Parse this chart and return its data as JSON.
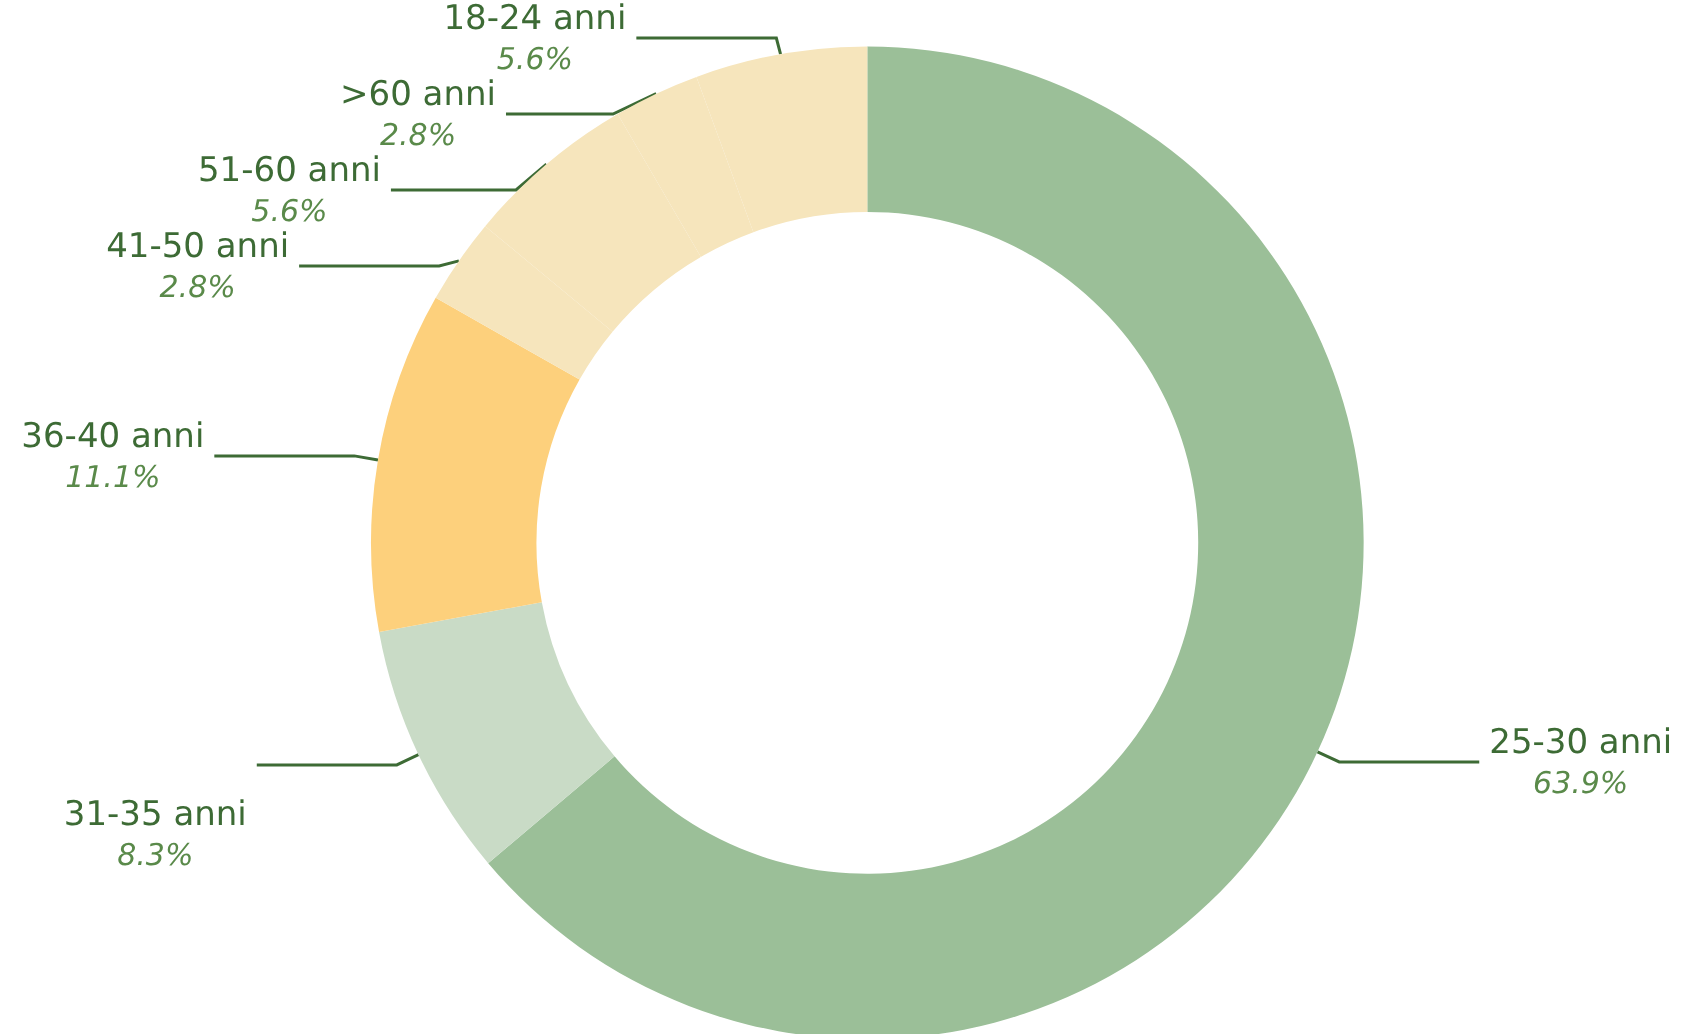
{
  "chart_data": {
    "type": "donut",
    "categories": [
      "25-30 anni",
      "31-35 anni",
      "36-40 anni",
      "41-50 anni",
      "51-60 anni",
      ">60 anni",
      "18-24 anni"
    ],
    "values": [
      63.9,
      8.3,
      11.1,
      2.8,
      5.6,
      2.8,
      5.6
    ],
    "value_labels": [
      "63.9%",
      "8.3%",
      "11.1%",
      "2.8%",
      "5.6%",
      "2.8%",
      "5.6%"
    ],
    "colors": [
      "#9bbf98",
      "#c9dbc6",
      "#fdd07c",
      "#f6e5bc",
      "#f6e5bc",
      "#f6e5bc",
      "#f6e5bc"
    ]
  }
}
